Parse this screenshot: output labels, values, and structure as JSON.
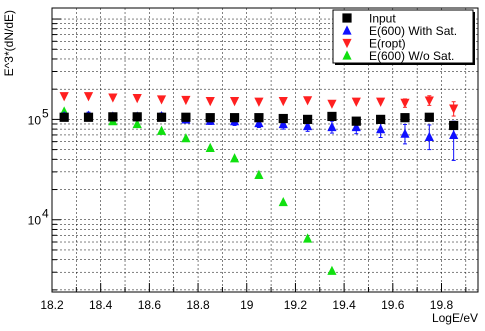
{
  "chart_data": {
    "type": "scatter",
    "xlabel": "LogE/eV",
    "ylabel": "E^3*(dN/dE)",
    "xlim": [
      18.2,
      19.95
    ],
    "ylim_log10": [
      3.28,
      6.11
    ],
    "log_y": true,
    "grid": true,
    "legend_position": "top-right",
    "x_ticks": [
      18.2,
      18.4,
      18.6,
      18.8,
      19.0,
      19.2,
      19.4,
      19.6,
      19.8
    ],
    "x_tick_labels": [
      "18.2",
      "18.4",
      "18.6",
      "18.8",
      "19",
      "19.2",
      "19.4",
      "19.6",
      "19.8"
    ],
    "y_ticks": [
      {
        "base": "10",
        "exp": "4",
        "value": 10000
      },
      {
        "base": "10",
        "exp": "5",
        "value": 100000
      }
    ],
    "series": [
      {
        "name": "Input",
        "marker": "square",
        "color": "#000000",
        "points": [
          {
            "x": 18.25,
            "y": 105000
          },
          {
            "x": 18.35,
            "y": 105000
          },
          {
            "x": 18.45,
            "y": 106000
          },
          {
            "x": 18.55,
            "y": 106000
          },
          {
            "x": 18.65,
            "y": 105000
          },
          {
            "x": 18.75,
            "y": 105000
          },
          {
            "x": 18.85,
            "y": 104000
          },
          {
            "x": 18.95,
            "y": 104000
          },
          {
            "x": 19.05,
            "y": 104000
          },
          {
            "x": 19.15,
            "y": 102000
          },
          {
            "x": 19.25,
            "y": 100000
          },
          {
            "x": 19.35,
            "y": 107000
          },
          {
            "x": 19.45,
            "y": 96000
          },
          {
            "x": 19.55,
            "y": 100000
          },
          {
            "x": 19.65,
            "y": 104000
          },
          {
            "x": 19.75,
            "y": 105000
          },
          {
            "x": 19.85,
            "y": 87000
          }
        ]
      },
      {
        "name": "E(600) With Sat.",
        "marker": "triangle-up",
        "color": "#1010ff",
        "points": [
          {
            "x": 18.25,
            "y": 108000,
            "lo": 98000,
            "hi": 116000
          },
          {
            "x": 18.35,
            "y": 109000,
            "lo": 100000,
            "hi": 118000
          },
          {
            "x": 18.45,
            "y": 107000,
            "lo": 99000,
            "hi": 115000
          },
          {
            "x": 18.55,
            "y": 107000,
            "lo": 99000,
            "hi": 115000
          },
          {
            "x": 18.65,
            "y": 108000,
            "lo": 100000,
            "hi": 116000
          },
          {
            "x": 18.75,
            "y": 100000,
            "lo": 93000,
            "hi": 108000
          },
          {
            "x": 18.85,
            "y": 97000,
            "lo": 89000,
            "hi": 106000
          },
          {
            "x": 18.95,
            "y": 96000,
            "lo": 87000,
            "hi": 105000
          },
          {
            "x": 19.05,
            "y": 92000,
            "lo": 83000,
            "hi": 101000
          },
          {
            "x": 19.15,
            "y": 90000,
            "lo": 80000,
            "hi": 100000
          },
          {
            "x": 19.25,
            "y": 86000,
            "lo": 76000,
            "hi": 96000
          },
          {
            "x": 19.35,
            "y": 84000,
            "lo": 73000,
            "hi": 96000
          },
          {
            "x": 19.45,
            "y": 84000,
            "lo": 72000,
            "hi": 97000
          },
          {
            "x": 19.55,
            "y": 80000,
            "lo": 66000,
            "hi": 95000
          },
          {
            "x": 19.65,
            "y": 72000,
            "lo": 57000,
            "hi": 89000
          },
          {
            "x": 19.75,
            "y": 67000,
            "lo": 50000,
            "hi": 88000
          },
          {
            "x": 19.85,
            "y": 70000,
            "lo": 39000,
            "hi": 96000
          }
        ]
      },
      {
        "name": "E(ropt)",
        "marker": "triangle-down",
        "color": "#ff2020",
        "points": [
          {
            "x": 18.25,
            "y": 170000
          },
          {
            "x": 18.35,
            "y": 170000
          },
          {
            "x": 18.45,
            "y": 165000
          },
          {
            "x": 18.55,
            "y": 163000
          },
          {
            "x": 18.65,
            "y": 158000
          },
          {
            "x": 18.75,
            "y": 156000
          },
          {
            "x": 18.85,
            "y": 152000
          },
          {
            "x": 18.95,
            "y": 152000
          },
          {
            "x": 19.05,
            "y": 150000
          },
          {
            "x": 19.15,
            "y": 152000
          },
          {
            "x": 19.25,
            "y": 155000
          },
          {
            "x": 19.35,
            "y": 143000
          },
          {
            "x": 19.45,
            "y": 150000
          },
          {
            "x": 19.55,
            "y": 150000
          },
          {
            "x": 19.65,
            "y": 146000,
            "lo": 132000,
            "hi": 160000
          },
          {
            "x": 19.75,
            "y": 154000,
            "lo": 138000,
            "hi": 172000
          },
          {
            "x": 19.85,
            "y": 128000,
            "lo": 108000,
            "hi": 150000
          }
        ]
      },
      {
        "name": "E(600) W/o Sat.",
        "marker": "triangle-up",
        "color": "#10e010",
        "points": [
          {
            "x": 18.25,
            "y": 120000
          },
          {
            "x": 18.35,
            "y": 108000
          },
          {
            "x": 18.45,
            "y": 96000
          },
          {
            "x": 18.55,
            "y": 90000
          },
          {
            "x": 18.65,
            "y": 77000
          },
          {
            "x": 18.75,
            "y": 65000
          },
          {
            "x": 18.85,
            "y": 52000
          },
          {
            "x": 18.95,
            "y": 41000
          },
          {
            "x": 19.05,
            "y": 28000
          },
          {
            "x": 19.15,
            "y": 15000
          },
          {
            "x": 19.25,
            "y": 6500
          },
          {
            "x": 19.35,
            "y": 3100
          }
        ]
      }
    ]
  }
}
